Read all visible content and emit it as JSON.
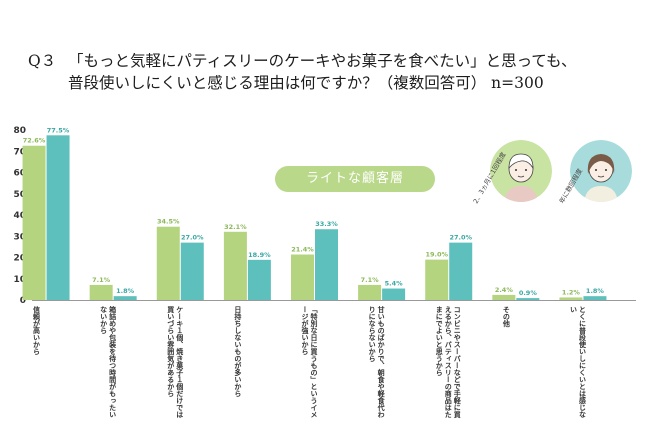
{
  "question": {
    "number": "Q３",
    "line1": "「もっと気軽にパティスリーのケーキやお菓子を食べたい」と思っても、",
    "line2": "普段使いしにくいと感じる理由は何ですか？（複数回答可）",
    "n_label": "n=300"
  },
  "segment_badge": "ライトな顧客層",
  "personas": [
    {
      "caption": "2、3ヵ月に1回程度",
      "color": "#c9e3a3"
    },
    {
      "caption": "年に数回程度",
      "color": "#a8dcdc"
    }
  ],
  "colors": {
    "series_green": "#b5d480",
    "series_teal": "#5ec0bd",
    "label_green": "#8cb85a",
    "label_teal": "#3aa8a4"
  },
  "chart_data": {
    "type": "bar",
    "ylim": [
      0,
      80
    ],
    "yticks": [
      0,
      10,
      20,
      30,
      40,
      50,
      60,
      70,
      80
    ],
    "categories": [
      "信頼が高いから",
      "箱詰めや包装を待つ時間がもったいないから",
      "ケーキ１個、焼き菓子１個だけでは買いづらい雰囲気があるから",
      "日持ちしないものが多いから",
      "「特別な日に買うもの」というイメージが強いから",
      "甘いものばかりで、朝食や軽食代わりにならないから",
      "コンビニやスーパーなどで手軽に買えるから、パティスリーの商品はたまにでよいと思うから",
      "その他",
      "とくに普段使いしにくいとは感じない"
    ],
    "series": [
      {
        "values": [
          72.6,
          7.1,
          34.5,
          32.1,
          21.4,
          7.1,
          19.0,
          2.4,
          1.2
        ],
        "labels": [
          "72.6%",
          "7.1%",
          "34.5%",
          "32.1%",
          "21.4%",
          "7.1%",
          "19.0%",
          "2.4%",
          "1.2%"
        ]
      },
      {
        "values": [
          77.5,
          1.8,
          27.0,
          18.9,
          33.3,
          5.4,
          27.0,
          0.9,
          1.8
        ],
        "labels": [
          "77.5%",
          "1.8%",
          "27.0%",
          "18.9%",
          "33.3%",
          "5.4%",
          "27.0%",
          "0.9%",
          "1.8%"
        ]
      }
    ]
  }
}
